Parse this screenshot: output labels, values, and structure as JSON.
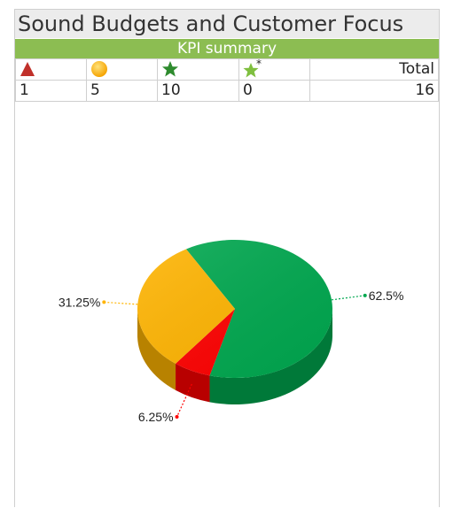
{
  "title": "Sound Budgets and Customer Focus",
  "subtitle": "KPI summary",
  "kpi_header": {
    "icons": [
      "red-triangle-icon",
      "orange-circle-icon",
      "green-star-icon",
      "green-star-asterisk-icon"
    ],
    "total_label": "Total"
  },
  "kpi_values": [
    "1",
    "5",
    "10",
    "0"
  ],
  "kpi_total": "16",
  "colors": {
    "red": "#ff0000",
    "orange": "#ffb400",
    "green": "#00a84f",
    "header_green": "#8cbd52"
  },
  "chart_data": {
    "type": "pie",
    "title": "",
    "slices": [
      {
        "label": "62.5%",
        "value": 62.5,
        "color": "#00a84f"
      },
      {
        "label": "6.25%",
        "value": 6.25,
        "color": "#ff0000"
      },
      {
        "label": "31.25%",
        "value": 31.25,
        "color": "#ffb400"
      }
    ]
  }
}
